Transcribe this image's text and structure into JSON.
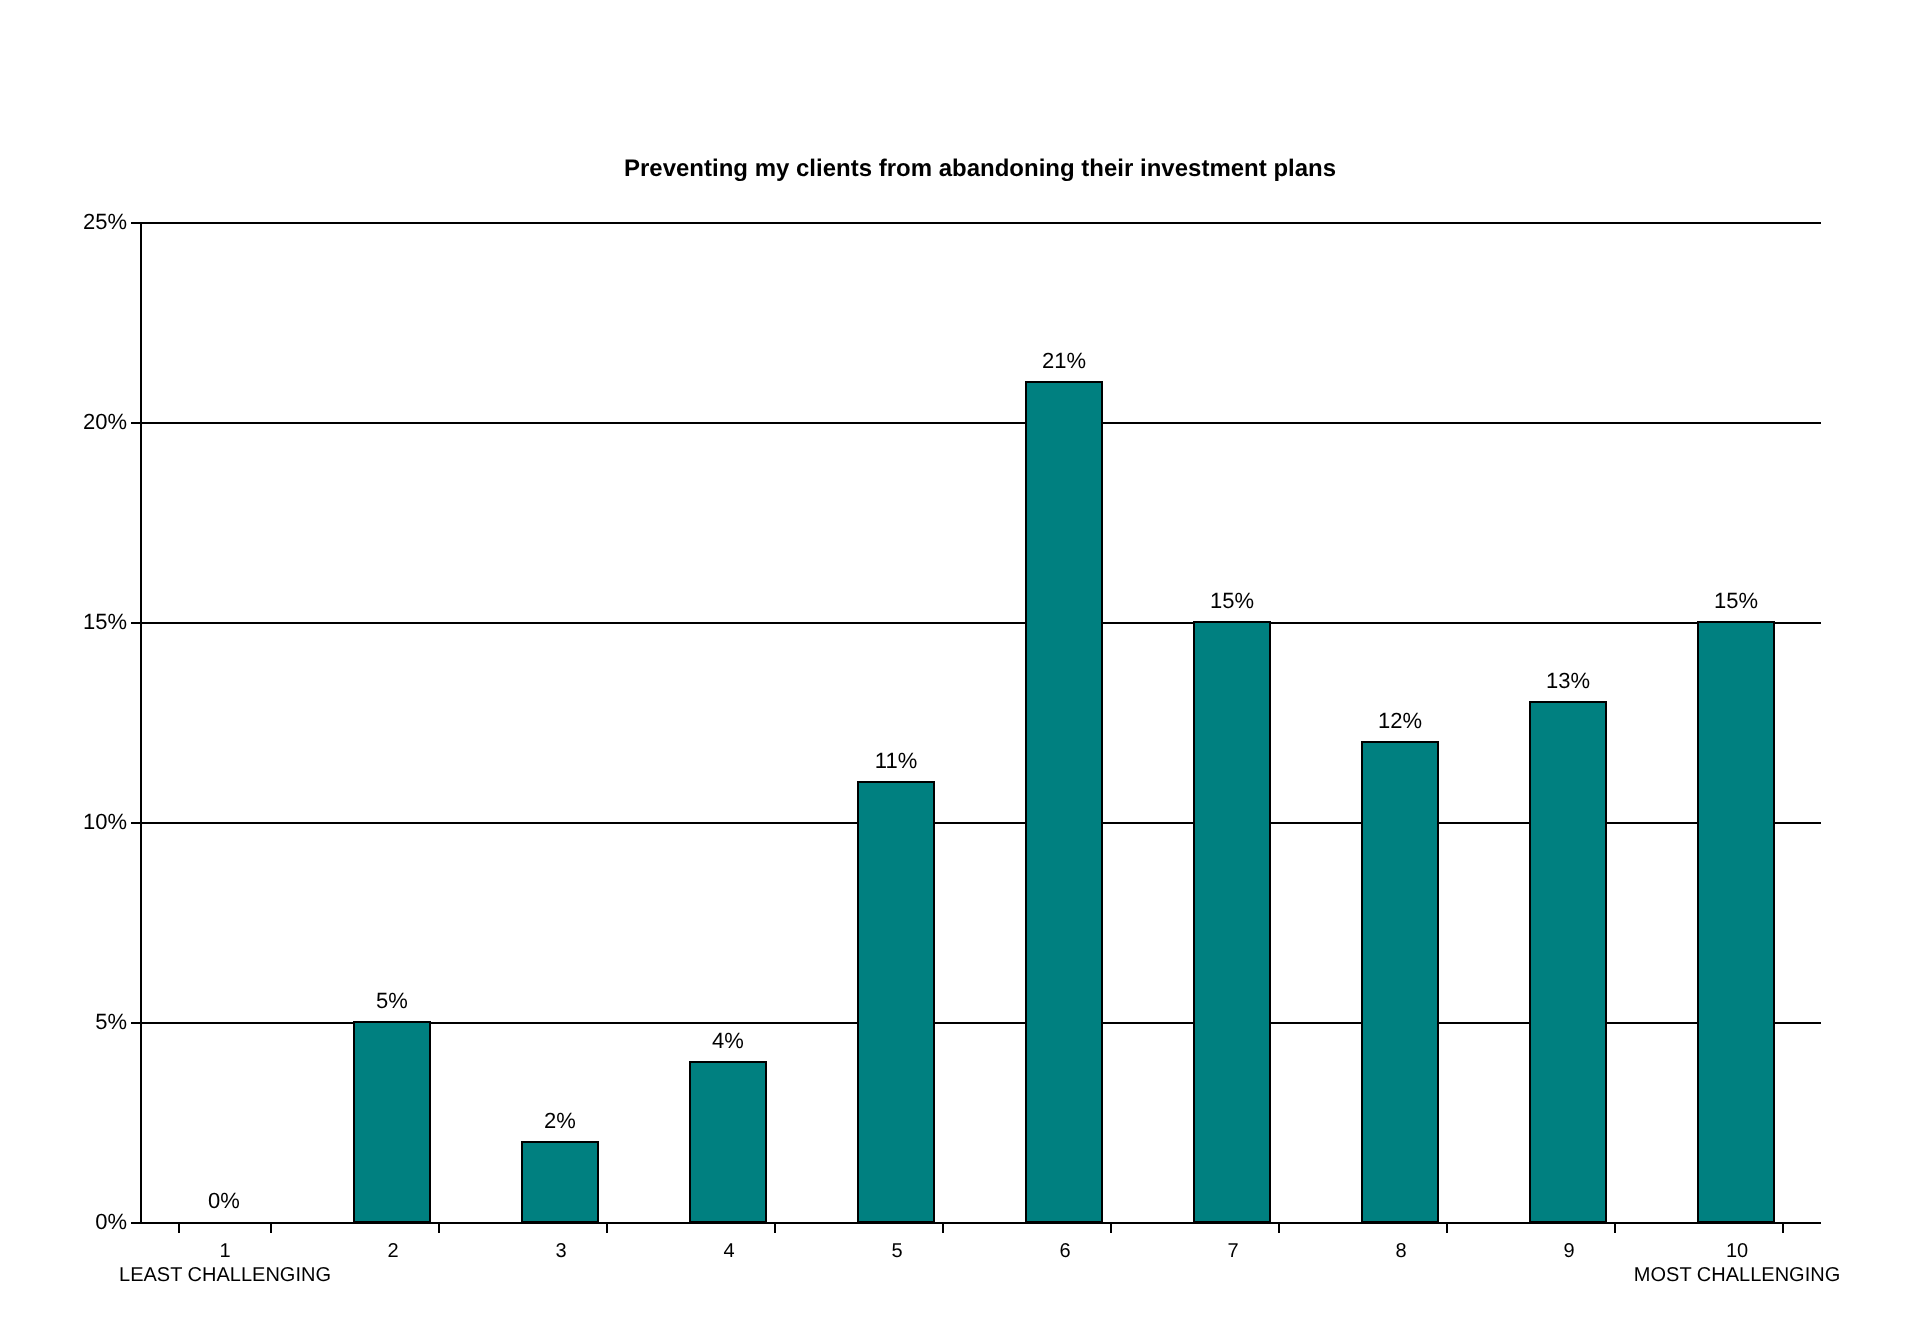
{
  "chart_data": {
    "type": "bar",
    "title": "Preventing my clients from abandoning their investment plans",
    "categories": [
      "1\nLEAST CHALLENGING",
      "2",
      "3",
      "4",
      "5",
      "6",
      "7",
      "8",
      "9",
      "10\nMOST CHALLENGING"
    ],
    "values": [
      0,
      5,
      2,
      4,
      11,
      21,
      15,
      12,
      13,
      15
    ],
    "value_labels": [
      "0%",
      "5%",
      "2%",
      "4%",
      "11%",
      "21%",
      "15%",
      "12%",
      "13%",
      "15%"
    ],
    "color": "#008080",
    "ylim": [
      0,
      25
    ],
    "yticks": [
      {
        "value": 0,
        "label": "0%"
      },
      {
        "value": 5,
        "label": "5%"
      },
      {
        "value": 10,
        "label": "10%"
      },
      {
        "value": 15,
        "label": "15%"
      },
      {
        "value": 20,
        "label": "20%"
      },
      {
        "value": 25,
        "label": "25%"
      }
    ],
    "grid": "y",
    "legend": false
  }
}
